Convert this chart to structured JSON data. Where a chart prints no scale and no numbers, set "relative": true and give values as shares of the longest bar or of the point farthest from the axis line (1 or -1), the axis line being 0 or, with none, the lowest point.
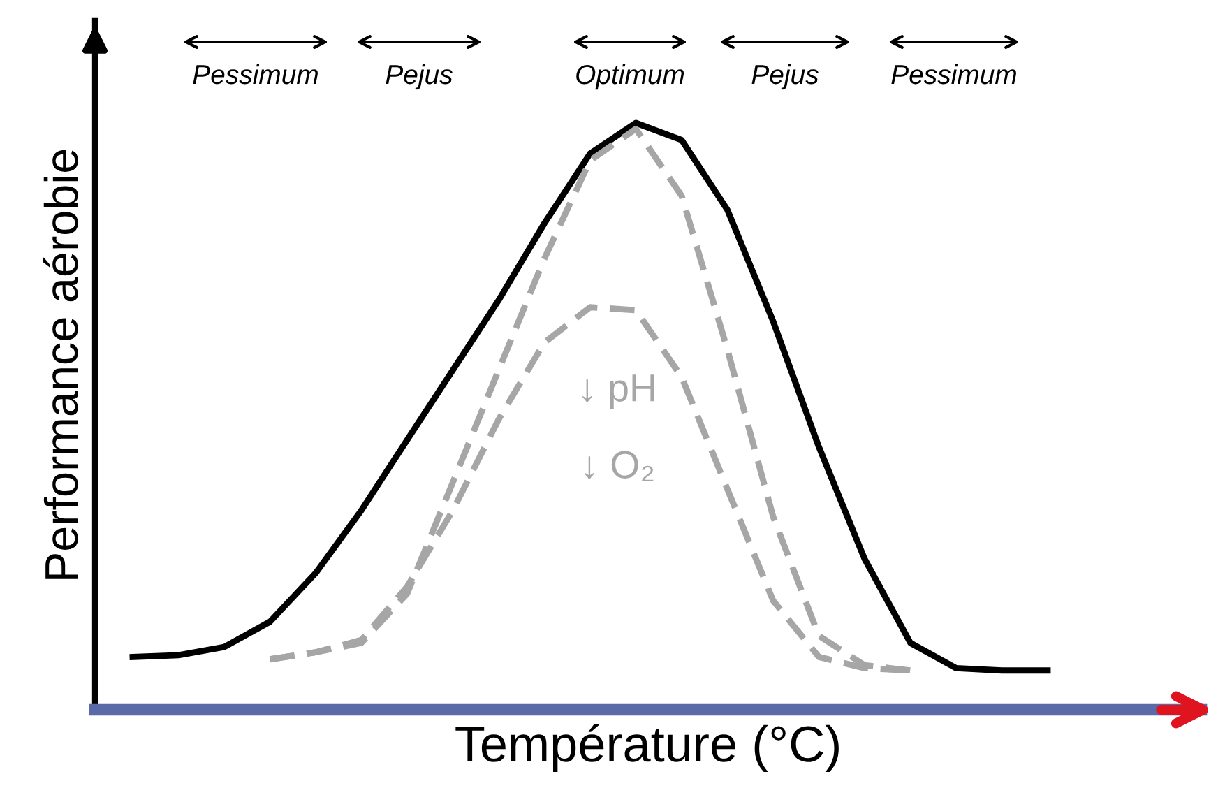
{
  "chart_data": {
    "type": "line",
    "relative": true,
    "xlabel": "Température (°C)",
    "ylabel": "Performance aérobie",
    "categories": [
      null,
      null,
      null,
      null,
      null,
      null,
      null,
      null,
      null,
      null,
      null,
      null,
      null,
      null,
      null,
      null,
      null,
      null,
      null,
      null,
      null
    ],
    "series": [
      {
        "color": "#000000",
        "line_style": "solid",
        "values": [
          0.09,
          0.093,
          0.107,
          0.15,
          0.233,
          0.34,
          0.46,
          0.579,
          0.698,
          0.829,
          0.948,
          1,
          0.971,
          0.852,
          0.662,
          0.448,
          0.257,
          0.114,
          0.071,
          0.067,
          0.067
        ]
      },
      {
        "color": "#a6a6a6",
        "line_style": "dashed",
        "values": [
          null,
          null,
          null,
          0.086,
          0.098,
          0.114,
          0.198,
          0.388,
          0.579,
          0.769,
          0.936,
          0.99,
          0.876,
          0.614,
          0.329,
          0.126,
          0.076,
          0.067,
          null,
          null,
          null
        ]
      },
      {
        "color": "#a6a6a6",
        "line_style": "dashed",
        "values": [
          null,
          null,
          null,
          0.086,
          0.098,
          0.119,
          0.21,
          0.34,
          0.495,
          0.626,
          0.686,
          0.681,
          0.567,
          0.376,
          0.186,
          0.09,
          0.071,
          0.067,
          null,
          null,
          null
        ]
      }
    ],
    "annotations": [
      "Pessimum",
      "Pejus",
      "Optimum",
      "Pejus",
      "Pessimum",
      "↓ pH",
      "↓ O₂"
    ],
    "legend": false,
    "grid": false
  }
}
